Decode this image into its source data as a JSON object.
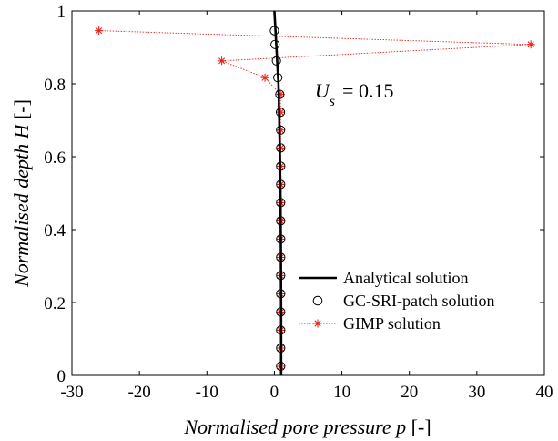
{
  "chart_data": {
    "type": "line",
    "xlabel_prefix": "Normalised pore pressure p",
    "xlabel_unit": " [-]",
    "ylabel_prefix": "Normalised depth H",
    "ylabel_unit": " [-]",
    "xlim": [
      -30,
      40
    ],
    "ylim": [
      0,
      1
    ],
    "xticks": [
      -30,
      -20,
      -10,
      0,
      10,
      20,
      30,
      40
    ],
    "xtick_labels": [
      "-30",
      "-20",
      "-10",
      "0",
      "10",
      "20",
      "30",
      "40"
    ],
    "yticks": [
      0,
      0.2,
      0.4,
      0.6,
      0.8,
      1
    ],
    "ytick_labels": [
      "0",
      "0.2",
      "0.4",
      "0.6",
      "0.8",
      "1"
    ],
    "annotation": {
      "symbol": "U",
      "subscript": "s",
      "value_text": "= 0.15",
      "x": 6.0,
      "y": 0.78
    },
    "legend_position": "bottom-right",
    "series": [
      {
        "name": "Analytical solution",
        "style": "solid-line",
        "color": "#000000",
        "x": [
          0.0,
          0.15,
          0.3,
          0.45,
          0.6,
          0.72,
          0.82,
          0.9,
          0.96,
          1.0,
          1.0
        ],
        "y": [
          1.0,
          0.95,
          0.9,
          0.85,
          0.8,
          0.7,
          0.6,
          0.5,
          0.35,
          0.15,
          0.0
        ]
      },
      {
        "name": "GC-SRI-patch solution",
        "style": "open-circle",
        "color": "#000000",
        "x": [
          0.0,
          0.1,
          0.3,
          0.5,
          0.8,
          0.9,
          0.92,
          0.93,
          0.93,
          0.93,
          0.93,
          0.93,
          0.93,
          0.93,
          0.93,
          0.93,
          0.93,
          0.93,
          0.93,
          0.93
        ],
        "y": [
          0.946,
          0.908,
          0.863,
          0.817,
          0.771,
          0.722,
          0.673,
          0.624,
          0.574,
          0.524,
          0.474,
          0.424,
          0.374,
          0.324,
          0.274,
          0.224,
          0.174,
          0.124,
          0.075,
          0.025
        ]
      },
      {
        "name": "GIMP solution",
        "style": "dotted-star",
        "color": "#e8251f",
        "x": [
          -26.0,
          38.0,
          -7.8,
          -1.4,
          0.9,
          0.92,
          0.93,
          0.93,
          0.93,
          0.93,
          0.93,
          0.93,
          0.93,
          0.93,
          0.93,
          0.93,
          0.93,
          0.93,
          0.93,
          0.93
        ],
        "y": [
          0.946,
          0.908,
          0.863,
          0.817,
          0.771,
          0.722,
          0.673,
          0.624,
          0.574,
          0.524,
          0.474,
          0.424,
          0.374,
          0.324,
          0.274,
          0.224,
          0.174,
          0.124,
          0.075,
          0.025
        ]
      }
    ]
  }
}
